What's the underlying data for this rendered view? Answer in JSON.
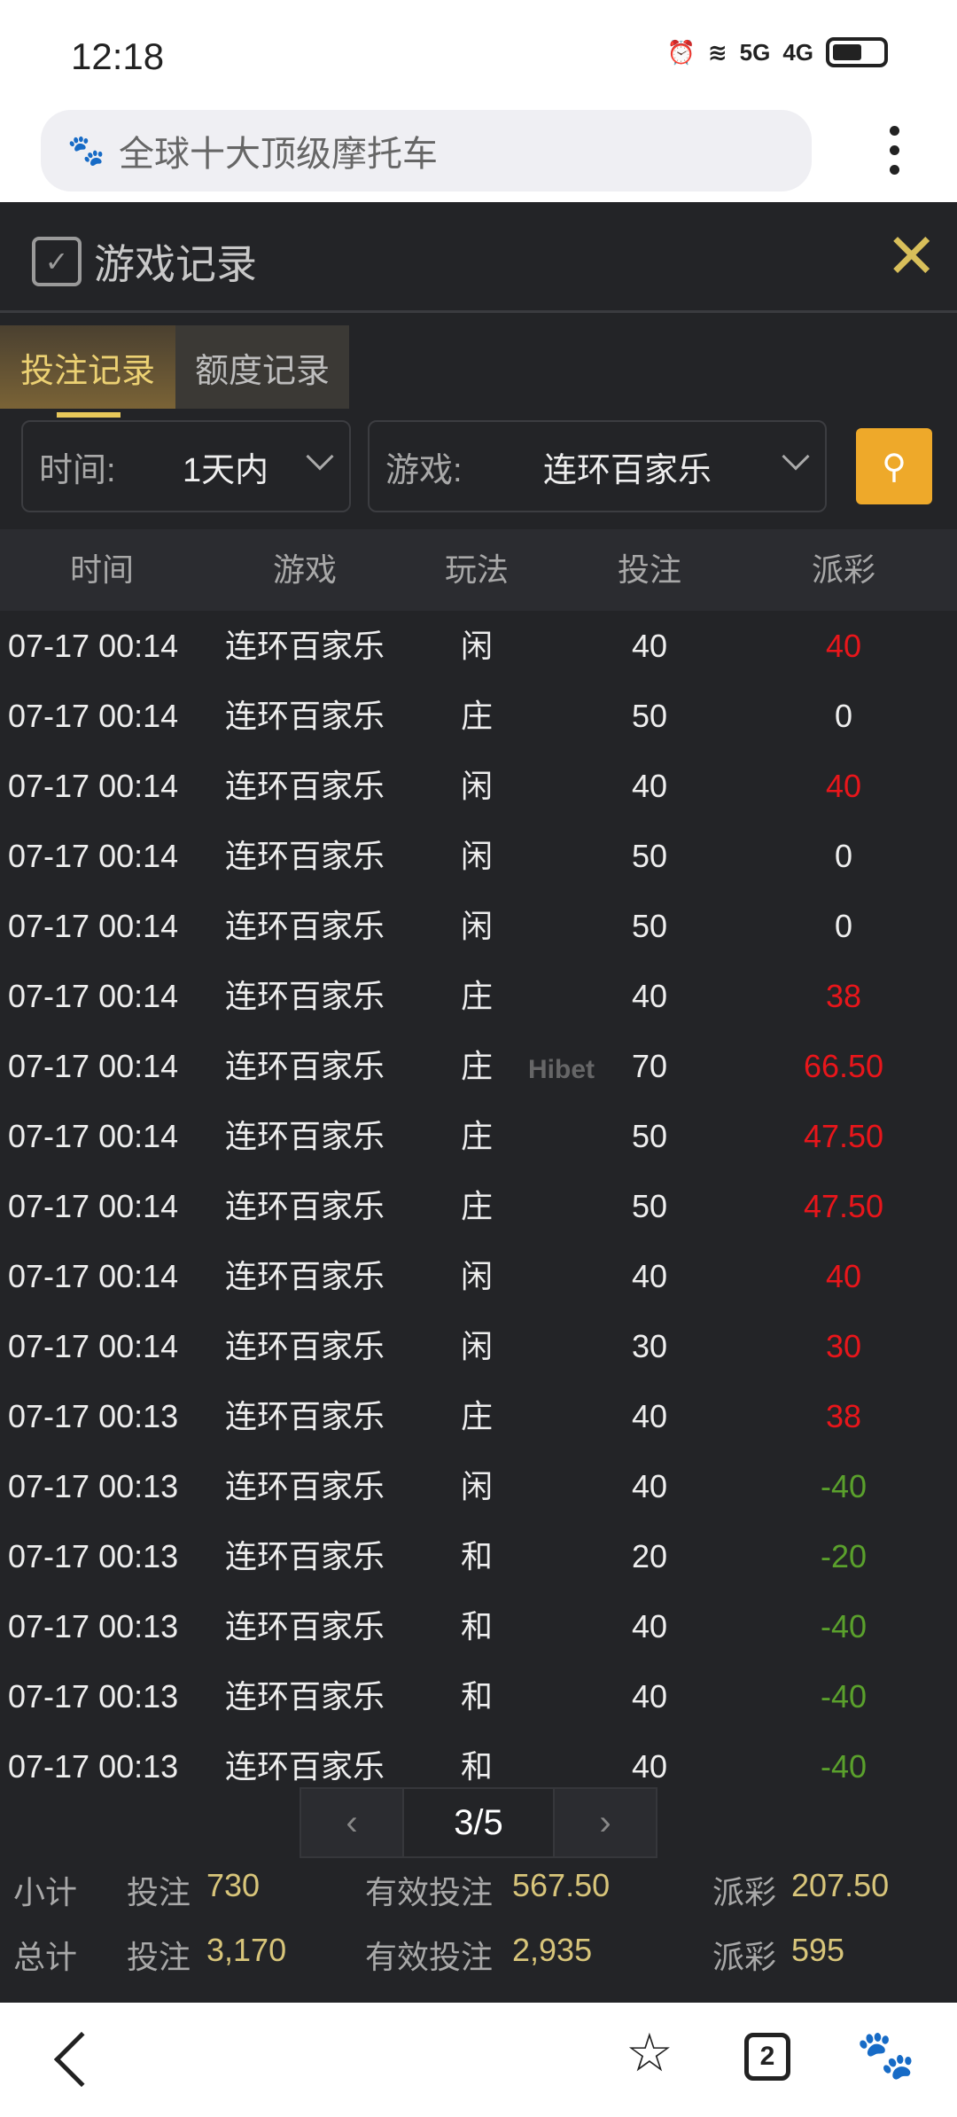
{
  "status_bar": {
    "time": "12:18",
    "network": [
      "5G",
      "4G"
    ]
  },
  "browser": {
    "url_text": "全球十大顶级摩托车",
    "logo_icon": "baidu-paw-icon"
  },
  "panel": {
    "title": "游戏记录",
    "tabs": [
      {
        "label": "投注记录",
        "active": true
      },
      {
        "label": "额度记录",
        "active": false
      }
    ],
    "filters": {
      "time_label": "时间:",
      "time_value": "1天内",
      "game_label": "游戏:",
      "game_value": "连环百家乐"
    },
    "columns": [
      "时间",
      "游戏",
      "玩法",
      "投注",
      "派彩"
    ],
    "rows": [
      [
        "07-17 00:14",
        "连环百家乐",
        "闲",
        "40",
        "40",
        "pos"
      ],
      [
        "07-17 00:14",
        "连环百家乐",
        "庄",
        "50",
        "0",
        "zero"
      ],
      [
        "07-17 00:14",
        "连环百家乐",
        "闲",
        "40",
        "40",
        "pos"
      ],
      [
        "07-17 00:14",
        "连环百家乐",
        "闲",
        "50",
        "0",
        "zero"
      ],
      [
        "07-17 00:14",
        "连环百家乐",
        "闲",
        "50",
        "0",
        "zero"
      ],
      [
        "07-17 00:14",
        "连环百家乐",
        "庄",
        "40",
        "38",
        "pos"
      ],
      [
        "07-17 00:14",
        "连环百家乐",
        "庄",
        "70",
        "66.50",
        "pos"
      ],
      [
        "07-17 00:14",
        "连环百家乐",
        "庄",
        "50",
        "47.50",
        "pos"
      ],
      [
        "07-17 00:14",
        "连环百家乐",
        "庄",
        "50",
        "47.50",
        "pos"
      ],
      [
        "07-17 00:14",
        "连环百家乐",
        "闲",
        "40",
        "40",
        "pos"
      ],
      [
        "07-17 00:14",
        "连环百家乐",
        "闲",
        "30",
        "30",
        "pos"
      ],
      [
        "07-17 00:13",
        "连环百家乐",
        "庄",
        "40",
        "38",
        "pos"
      ],
      [
        "07-17 00:13",
        "连环百家乐",
        "闲",
        "40",
        "-40",
        "neg"
      ],
      [
        "07-17 00:13",
        "连环百家乐",
        "和",
        "20",
        "-20",
        "neg"
      ],
      [
        "07-17 00:13",
        "连环百家乐",
        "和",
        "40",
        "-40",
        "neg"
      ],
      [
        "07-17 00:13",
        "连环百家乐",
        "和",
        "40",
        "-40",
        "neg"
      ],
      [
        "07-17 00:13",
        "连环百家乐",
        "和",
        "40",
        "-40",
        "neg"
      ]
    ],
    "pagination": {
      "page": "3/5",
      "prev": "‹",
      "next": "›"
    },
    "subtotal": {
      "label": "小计",
      "bet_label": "投注",
      "bet": "730",
      "valid_label": "有效投注",
      "valid": "567.50",
      "payout_label": "派彩",
      "payout": "207.50"
    },
    "total": {
      "label": "总计",
      "bet_label": "投注",
      "bet": "3,170",
      "valid_label": "有效投注",
      "valid": "2,935",
      "payout_label": "派彩",
      "payout": "595"
    },
    "watermark": "Hibet 海博 .cc"
  },
  "bottom_nav": {
    "tab_count": "2"
  },
  "colors": {
    "accent": "#eea92a",
    "win": "#e8161b",
    "loss": "#5aa02c",
    "gold": "#d8c57a",
    "bg": "#232427"
  }
}
